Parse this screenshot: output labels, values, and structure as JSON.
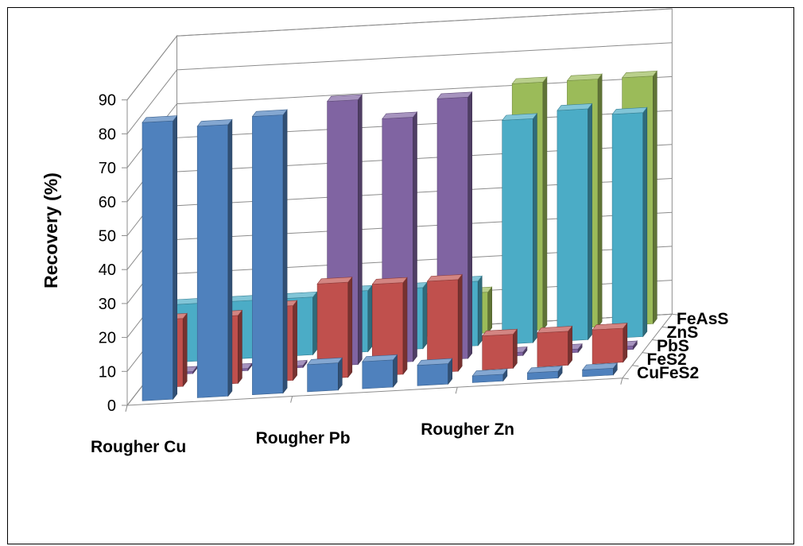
{
  "chart_data": {
    "type": "bar",
    "subtype": "3d-column",
    "ylabel": "Recovery (%)",
    "ylim": [
      0,
      90
    ],
    "yticks": [
      0,
      10,
      20,
      30,
      40,
      50,
      60,
      70,
      80,
      90
    ],
    "grid": true,
    "categories": [
      "Rougher Cu",
      "Rougher Pb",
      "Rougher Zn"
    ],
    "series": [
      {
        "name": "CuFeS2",
        "color": "#4F81BD",
        "values": [
          [
            82,
            80,
            82
          ],
          [
            8,
            8,
            6
          ],
          [
            2,
            2,
            2
          ]
        ]
      },
      {
        "name": "FeS2",
        "color": "#C0504D",
        "values": [
          [
            20,
            20,
            22
          ],
          [
            28,
            27,
            27
          ],
          [
            10,
            10,
            10
          ]
        ]
      },
      {
        "name": "PbS",
        "color": "#8064A2",
        "values": [
          [
            0,
            0,
            0
          ],
          [
            78,
            72,
            77
          ],
          [
            1,
            1,
            1
          ]
        ]
      },
      {
        "name": "ZnS",
        "color": "#4BACC6",
        "values": [
          [
            17,
            17,
            17
          ],
          [
            18,
            18,
            19
          ],
          [
            66,
            68,
            66
          ]
        ]
      },
      {
        "name": "FeAsS",
        "color": "#9BBB59",
        "values": [
          [
            13,
            13,
            13
          ],
          [
            11,
            11,
            12
          ],
          [
            73,
            73,
            73
          ]
        ]
      }
    ]
  }
}
